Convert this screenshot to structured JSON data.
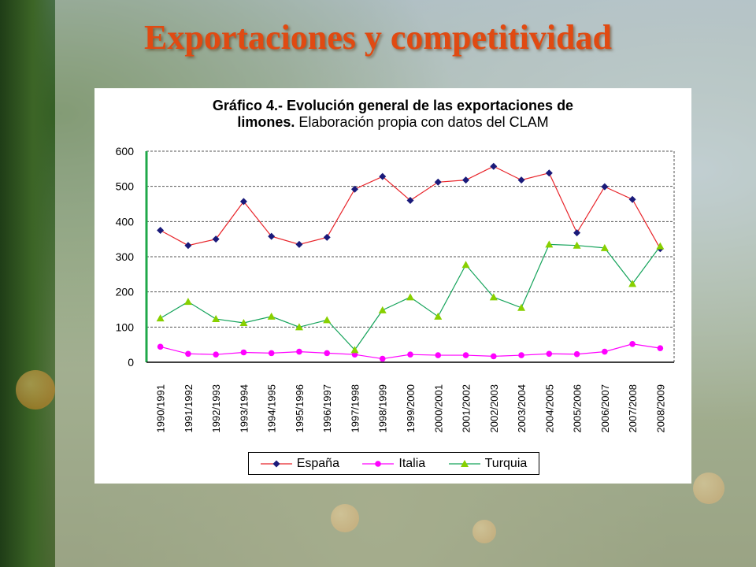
{
  "slide": {
    "title": "Exportaciones y competitividad"
  },
  "chart_data": {
    "type": "line",
    "title_bold": "Gráfico 4.- Evolución general de las exportaciones de limones.",
    "title_bold_line1": "Gráfico 4.- Evolución general de las exportaciones de",
    "title_bold_line2": "limones.",
    "title_normal": "Elaboración propia con datos del CLAM",
    "categories": [
      "1990/1991",
      "1991/1992",
      "1992/1993",
      "1993/1994",
      "1994/1995",
      "1995/1996",
      "1996/1997",
      "1997/1998",
      "1998/1999",
      "1999/2000",
      "2000/2001",
      "2001/2002",
      "2002/2003",
      "2003/2004",
      "2004/2005",
      "2005/2006",
      "2006/2007",
      "2007/2008",
      "2008/2009"
    ],
    "yticks": [
      "0",
      "100",
      "200",
      "300",
      "400",
      "500",
      "600"
    ],
    "ylim": [
      0,
      600
    ],
    "grid": true,
    "legend_position": "bottom",
    "series": [
      {
        "name": "España",
        "color": "#e8242a",
        "marker_color": "#1a1a7a",
        "marker": "diamond",
        "values": [
          375,
          332,
          350,
          457,
          358,
          335,
          355,
          492,
          528,
          460,
          512,
          518,
          557,
          518,
          538,
          368,
          499,
          463,
          323
        ]
      },
      {
        "name": "Italia",
        "color": "#ff00ff",
        "marker_color": "#ff00ff",
        "marker": "circle",
        "values": [
          44,
          24,
          22,
          28,
          26,
          30,
          26,
          22,
          10,
          22,
          20,
          20,
          17,
          20,
          24,
          23,
          30,
          52,
          40
        ]
      },
      {
        "name": "Turquia",
        "color": "#14a35a",
        "marker_color": "#88d000",
        "marker": "triangle",
        "values": [
          125,
          172,
          123,
          112,
          130,
          100,
          120,
          35,
          148,
          185,
          130,
          277,
          185,
          155,
          335,
          332,
          325,
          223,
          330
        ]
      }
    ]
  }
}
